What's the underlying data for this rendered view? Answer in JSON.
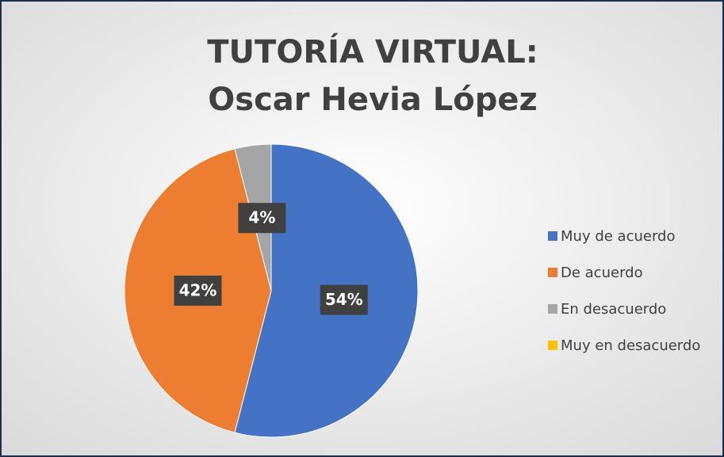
{
  "chart_data": {
    "type": "pie",
    "title": [
      "TUTORÍA VIRTUAL:",
      "Oscar Hevia López"
    ],
    "categories": [
      "Muy de acuerdo",
      "De acuerdo",
      "En desacuerdo",
      "Muy en desacuerdo"
    ],
    "values": [
      54,
      42,
      4,
      0
    ],
    "value_labels": [
      "54%",
      "42%",
      "4%",
      null
    ],
    "colors": [
      "#4472c4",
      "#ed7d31",
      "#a5a5a5",
      "#ffc000"
    ],
    "legend": "right"
  }
}
